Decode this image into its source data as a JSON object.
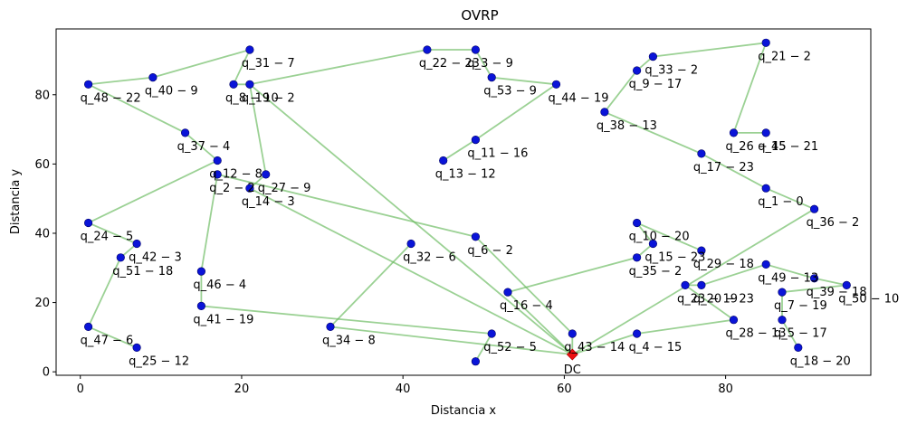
{
  "chart_data": {
    "type": "scatter",
    "title": "OVRP",
    "xlabel": "Distancia x",
    "ylabel": "Distancia y",
    "xlim": [
      -3,
      98
    ],
    "ylim": [
      -1,
      99
    ],
    "xticks": [
      0,
      20,
      40,
      60,
      80
    ],
    "yticks": [
      0,
      20,
      40,
      60,
      80
    ],
    "grid": false,
    "colors": {
      "route": "#66b85a",
      "node": "#0a14d8",
      "depot": "#ee1111"
    },
    "depot": {
      "label": "DC",
      "x": 61,
      "y": 5
    },
    "points": [
      {
        "label": "q_1 − 0",
        "x": 85,
        "y": 53
      },
      {
        "label": "q_2 − 2",
        "x": 17,
        "y": 57
      },
      {
        "label": "q_3 − 9",
        "x": 49,
        "y": 93
      },
      {
        "label": "q_4 − 15",
        "x": 69,
        "y": 11
      },
      {
        "label": "q_5 − 17",
        "x": 87,
        "y": 15
      },
      {
        "label": "q_6 − 2",
        "x": 49,
        "y": 39
      },
      {
        "label": "q_7 − 19",
        "x": 87,
        "y": 23
      },
      {
        "label": "q_8 − 10",
        "x": 19,
        "y": 83
      },
      {
        "label": "q_9 − 17",
        "x": 69,
        "y": 87
      },
      {
        "label": "q_10 − 20",
        "x": 69,
        "y": 43
      },
      {
        "label": "q_11 − 16",
        "x": 49,
        "y": 67
      },
      {
        "label": "q_12 − 8",
        "x": 17,
        "y": 61
      },
      {
        "label": "q_13 − 12",
        "x": 45,
        "y": 61
      },
      {
        "label": "q_14 − 3",
        "x": 21,
        "y": 53
      },
      {
        "label": "q_15 − 23",
        "x": 71,
        "y": 37
      },
      {
        "label": "q_16 − 4",
        "x": 53,
        "y": 23
      },
      {
        "label": "q_17 − 23",
        "x": 77,
        "y": 63
      },
      {
        "label": "q_18 − 20",
        "x": 89,
        "y": 7
      },
      {
        "label": "q_19 − 2",
        "x": 21,
        "y": 83
      },
      {
        "label": "q_20 − 23",
        "x": 77,
        "y": 25
      },
      {
        "label": "q_21 − 2",
        "x": 85,
        "y": 95
      },
      {
        "label": "q_22 − 23",
        "x": 43,
        "y": 93
      },
      {
        "label": "q_23 − 19",
        "x": 75,
        "y": 25
      },
      {
        "label": "q_24 − 5",
        "x": 1,
        "y": 43
      },
      {
        "label": "q_25 − 12",
        "x": 7,
        "y": 7
      },
      {
        "label": "q_26 − 15",
        "x": 81,
        "y": 69
      },
      {
        "label": "q_27 − 9",
        "x": 23,
        "y": 57
      },
      {
        "label": "q_28 − 13",
        "x": 81,
        "y": 15
      },
      {
        "label": "q_29 − 18",
        "x": 77,
        "y": 35
      },
      {
        "label": "q_31 − 7",
        "x": 21,
        "y": 93
      },
      {
        "label": "q_32 − 6",
        "x": 41,
        "y": 37
      },
      {
        "label": "q_33 − 2",
        "x": 71,
        "y": 91
      },
      {
        "label": "q_34 − 8",
        "x": 31,
        "y": 13
      },
      {
        "label": "q_35 − 2",
        "x": 69,
        "y": 33
      },
      {
        "label": "q_36 − 2",
        "x": 91,
        "y": 47
      },
      {
        "label": "q_37 − 4",
        "x": 13,
        "y": 69
      },
      {
        "label": "q_38 − 13",
        "x": 65,
        "y": 75
      },
      {
        "label": "q_39 − 18",
        "x": 91,
        "y": 27
      },
      {
        "label": "q_40 − 9",
        "x": 9,
        "y": 85
      },
      {
        "label": "q_41 − 19",
        "x": 15,
        "y": 19
      },
      {
        "label": "q_42 − 3",
        "x": 7,
        "y": 37
      },
      {
        "label": "q_43 − 14",
        "x": 61,
        "y": 11
      },
      {
        "label": "q_44 − 19",
        "x": 59,
        "y": 83
      },
      {
        "label": "q_45 − 21",
        "x": 85,
        "y": 69
      },
      {
        "label": "q_46 − 4",
        "x": 15,
        "y": 29
      },
      {
        "label": "q_47 − 6",
        "x": 1,
        "y": 13
      },
      {
        "label": "q_48 − 22",
        "x": 1,
        "y": 83
      },
      {
        "label": "q_49 − 13",
        "x": 85,
        "y": 31
      },
      {
        "label": "q_50 − 10",
        "x": 95,
        "y": 25
      },
      {
        "label": "q_51 − 18",
        "x": 5,
        "y": 33
      },
      {
        "label": "q_52 − 5",
        "x": 51,
        "y": 11
      },
      {
        "label": "q_53 − 9",
        "x": 51,
        "y": 85
      },
      {
        "label": "",
        "x": 49,
        "y": 3
      }
    ],
    "routes": [
      [
        [
          61,
          5
        ],
        [
          91,
          47
        ],
        [
          85,
          53
        ],
        [
          77,
          63
        ],
        [
          65,
          75
        ],
        [
          69,
          87
        ],
        [
          71,
          91
        ],
        [
          85,
          95
        ],
        [
          81,
          69
        ],
        [
          85,
          69
        ]
      ],
      [
        [
          61,
          5
        ],
        [
          53,
          23
        ],
        [
          69,
          33
        ],
        [
          71,
          37
        ],
        [
          69,
          43
        ],
        [
          77,
          35
        ]
      ],
      [
        [
          61,
          5
        ],
        [
          69,
          11
        ],
        [
          81,
          15
        ],
        [
          75,
          25
        ],
        [
          77,
          25
        ],
        [
          85,
          31
        ],
        [
          91,
          27
        ],
        [
          95,
          25
        ],
        [
          87,
          23
        ],
        [
          87,
          15
        ],
        [
          89,
          7
        ]
      ],
      [
        [
          61,
          5
        ],
        [
          21,
          53
        ],
        [
          23,
          57
        ],
        [
          21,
          83
        ],
        [
          19,
          83
        ],
        [
          21,
          93
        ],
        [
          9,
          85
        ],
        [
          1,
          83
        ],
        [
          13,
          69
        ],
        [
          17,
          61
        ],
        [
          1,
          43
        ],
        [
          7,
          37
        ],
        [
          5,
          33
        ],
        [
          1,
          13
        ],
        [
          7,
          7
        ]
      ],
      [
        [
          61,
          5
        ],
        [
          61,
          11
        ],
        [
          49,
          39
        ],
        [
          17,
          57
        ],
        [
          15,
          29
        ],
        [
          15,
          19
        ],
        [
          51,
          11
        ],
        [
          49,
          3
        ]
      ],
      [
        [
          61,
          5
        ],
        [
          31,
          13
        ],
        [
          41,
          37
        ]
      ],
      [
        [
          61,
          5
        ],
        [
          21,
          83
        ],
        [
          43,
          93
        ],
        [
          49,
          93
        ],
        [
          51,
          85
        ],
        [
          59,
          83
        ],
        [
          49,
          67
        ],
        [
          45,
          61
        ]
      ]
    ]
  }
}
